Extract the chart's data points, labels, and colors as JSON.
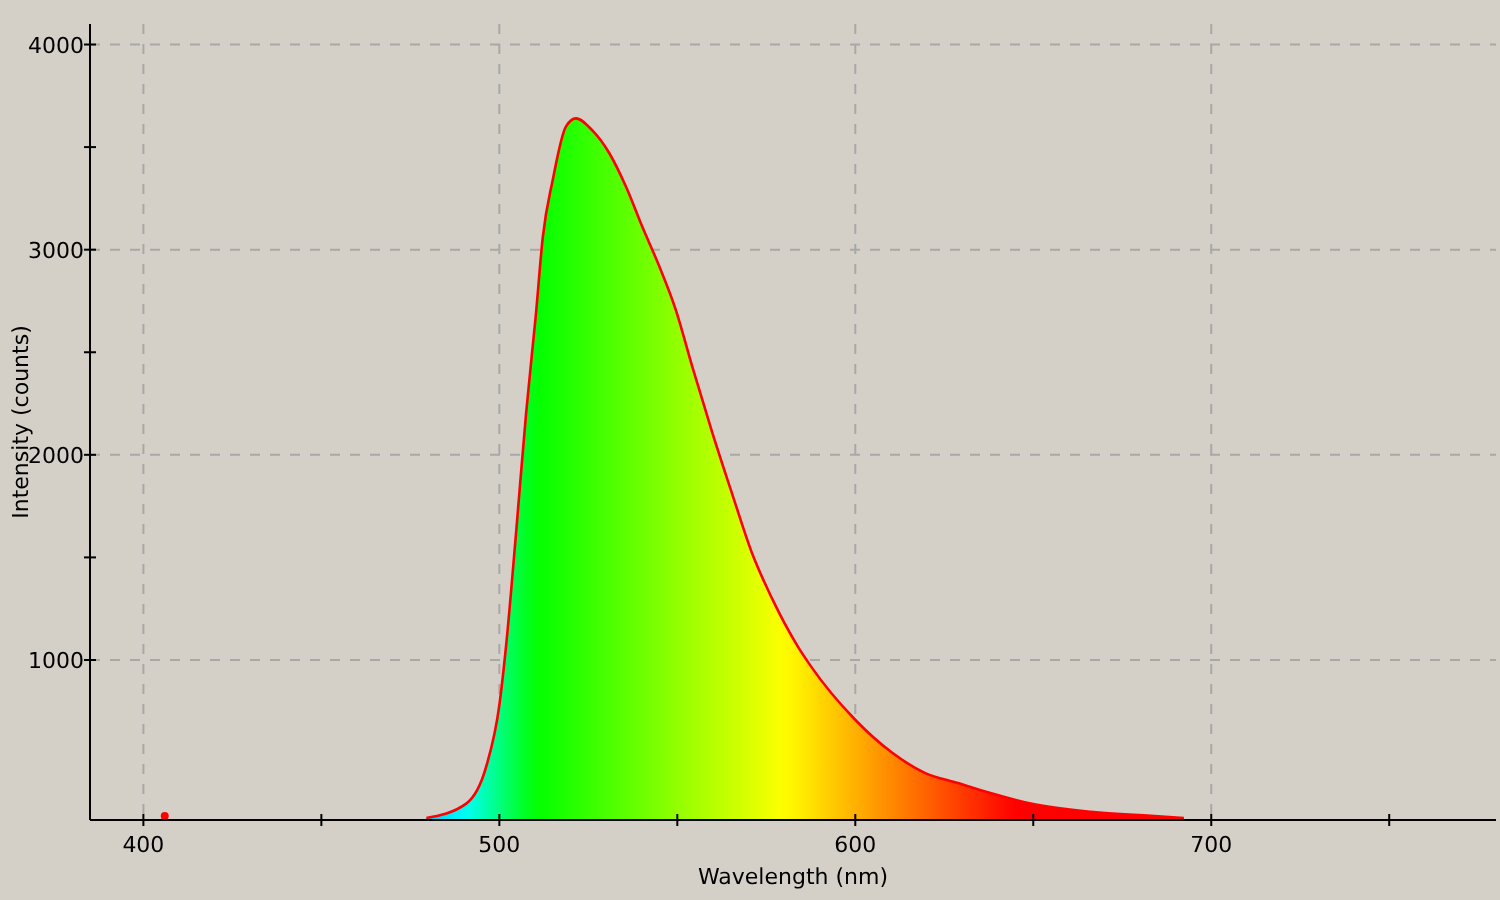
{
  "chart_data": {
    "type": "area",
    "xlabel": "Wavelength (nm)",
    "ylabel": "Intensity (counts)",
    "xlim": [
      385,
      780
    ],
    "ylim": [
      220,
      4100
    ],
    "xticks": [
      400,
      {
        "value": 450,
        "label": null
      },
      500,
      {
        "value": 550,
        "label": null
      },
      600,
      {
        "value": 650,
        "label": null
      },
      700,
      {
        "value": 750,
        "label": null
      }
    ],
    "yticks": [
      1000,
      {
        "value": 1500,
        "label": null
      },
      2000,
      {
        "value": 2500,
        "label": null
      },
      3000,
      {
        "value": 3500,
        "label": null
      },
      4000
    ],
    "grid": true,
    "line_style": "solid",
    "series": [
      {
        "color": "#ff0000",
        "x": [
          479.5,
          490.7,
          496.3,
          500,
          501.9,
          504.7,
          507.5,
          510.3,
          512.2,
          515,
          518.7,
          521.5,
          526.2,
          530.9,
          535.5,
          540.2,
          544.9,
          549.5,
          554.2,
          559.8,
          565.4,
          571,
          576.6,
          583.7,
          587.5,
          599.9,
          610.2,
          619.5,
          628.8,
          638.2,
          649.3,
          666.2,
          683,
          692.3
        ],
        "values": [
          230,
          300,
          480,
          780,
          1070,
          1620,
          2200,
          2690,
          3060,
          3340,
          3600,
          3640,
          3580,
          3470,
          3310,
          3110,
          2920,
          2710,
          2430,
          2110,
          1810,
          1520,
          1300,
          1070,
          970,
          710,
          550,
          450,
          400,
          350,
          300,
          260,
          240,
          230
        ]
      },
      {
        "type": "scatter",
        "color": "#ff0000",
        "x": [
          406
        ],
        "values": [
          240
        ]
      }
    ]
  }
}
